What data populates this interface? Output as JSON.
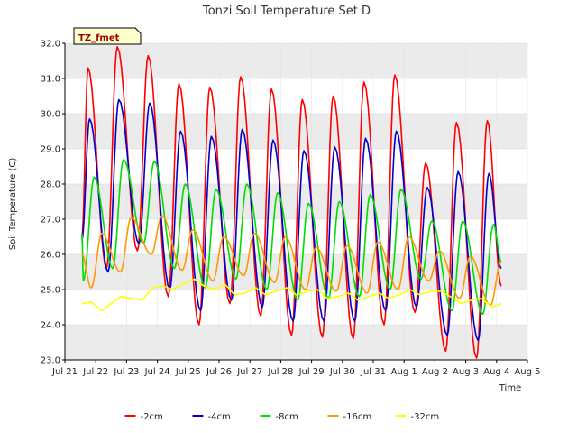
{
  "chart_data": {
    "type": "line",
    "title": "Tonzi Soil Temperature Set D",
    "xlabel": "Time",
    "ylabel": "Soil Temperature (C)",
    "tag": "TZ_fmet",
    "ylim": [
      23.0,
      32.0
    ],
    "yticks": [
      "23.0",
      "24.0",
      "25.0",
      "26.0",
      "27.0",
      "28.0",
      "29.0",
      "30.0",
      "31.0",
      "32.0"
    ],
    "xlim": [
      0,
      15
    ],
    "xticks": [
      "Jul 21",
      "Jul 22",
      "Jul 23",
      "Jul 24",
      "Jul 25",
      "Jul 26",
      "Jul 27",
      "Jul 28",
      "Jul 29",
      "Jul 30",
      "Jul 31",
      "Aug 1",
      "Aug 2",
      "Aug 3",
      "Aug 4",
      "Aug 5"
    ],
    "legend_position": "bottom",
    "background_bands": true,
    "series": [
      {
        "name": "-2cm",
        "color": "#ff0000",
        "peak_day_offsets": [
          0.75,
          1.7,
          2.7,
          3.7,
          4.7,
          5.7,
          6.7,
          7.7,
          8.7,
          9.7,
          10.7,
          11.7,
          12.7,
          13.7
        ],
        "maxima": [
          31.3,
          31.9,
          31.65,
          30.85,
          30.75,
          31.05,
          30.7,
          30.4,
          30.5,
          30.9,
          31.1,
          28.6,
          29.75,
          29.8
        ],
        "minima": [
          26.5,
          25.0,
          25.6,
          26.1,
          24.8,
          24.0,
          24.6,
          24.25,
          23.7,
          23.65,
          23.6,
          24.0,
          24.35,
          23.25,
          23.05,
          25.1
        ],
        "start_day": 0.55,
        "end_day": 14.15
      },
      {
        "name": "-4cm",
        "color": "#0000cc",
        "peak_day_offsets": [
          0.8,
          1.75,
          2.75,
          3.75,
          4.75,
          5.75,
          6.75,
          7.75,
          8.75,
          9.75,
          10.75,
          11.75,
          12.75,
          13.75
        ],
        "maxima": [
          29.85,
          30.4,
          30.3,
          29.5,
          29.35,
          29.55,
          29.25,
          28.95,
          29.05,
          29.3,
          29.5,
          27.9,
          28.35,
          28.3
        ],
        "minima": [
          26.4,
          25.1,
          25.5,
          26.3,
          25.0,
          24.4,
          24.7,
          24.5,
          24.1,
          24.1,
          24.1,
          24.4,
          24.5,
          23.7,
          23.55,
          25.6
        ],
        "start_day": 0.55,
        "end_day": 14.15
      },
      {
        "name": "-8cm",
        "color": "#00dd00",
        "peak_day_offsets": [
          0.95,
          1.9,
          2.9,
          3.9,
          4.9,
          5.9,
          6.9,
          7.9,
          8.9,
          9.9,
          10.9,
          11.9,
          12.9,
          13.9
        ],
        "maxima": [
          28.2,
          28.7,
          28.65,
          28.0,
          27.85,
          28.0,
          27.75,
          27.45,
          27.5,
          27.7,
          27.85,
          26.95,
          26.95,
          26.85
        ],
        "minima": [
          26.6,
          25.25,
          25.6,
          26.3,
          25.6,
          25.05,
          25.3,
          25.0,
          24.7,
          24.75,
          24.8,
          25.0,
          25.3,
          24.4,
          24.3,
          25.8
        ],
        "start_day": 0.55,
        "end_day": 14.15
      },
      {
        "name": "-16cm",
        "color": "#ff9900",
        "peak_day_offsets": [
          1.2,
          2.15,
          3.15,
          4.15,
          5.15,
          6.15,
          7.15,
          8.15,
          9.15,
          10.15,
          11.15,
          12.15,
          13.15,
          14.15
        ],
        "maxima": [
          26.6,
          27.05,
          27.1,
          26.7,
          26.5,
          26.6,
          26.5,
          26.2,
          26.25,
          26.35,
          26.5,
          26.1,
          25.95,
          25.8
        ],
        "minima": [
          26.0,
          25.05,
          25.5,
          26.0,
          25.55,
          25.25,
          25.4,
          25.2,
          25.0,
          24.95,
          24.9,
          25.0,
          25.25,
          24.75,
          24.55,
          25.8
        ],
        "start_day": 0.55,
        "end_day": 14.15
      },
      {
        "name": "-32cm",
        "color": "#ffff00",
        "points": [
          [
            0.55,
            24.6
          ],
          [
            0.85,
            24.65
          ],
          [
            1.2,
            24.4
          ],
          [
            1.5,
            24.6
          ],
          [
            1.8,
            24.8
          ],
          [
            2.2,
            24.75
          ],
          [
            2.5,
            24.7
          ],
          [
            2.85,
            25.05
          ],
          [
            3.2,
            25.1
          ],
          [
            3.5,
            25.0
          ],
          [
            3.8,
            25.15
          ],
          [
            4.2,
            25.3
          ],
          [
            4.5,
            25.1
          ],
          [
            4.85,
            25.0
          ],
          [
            5.2,
            25.15
          ],
          [
            5.5,
            24.85
          ],
          [
            5.85,
            24.9
          ],
          [
            6.2,
            25.05
          ],
          [
            6.5,
            24.85
          ],
          [
            6.85,
            24.95
          ],
          [
            7.2,
            25.05
          ],
          [
            7.5,
            24.85
          ],
          [
            7.85,
            24.95
          ],
          [
            8.2,
            25.0
          ],
          [
            8.5,
            24.75
          ],
          [
            8.85,
            24.8
          ],
          [
            9.2,
            24.9
          ],
          [
            9.5,
            24.7
          ],
          [
            9.85,
            24.8
          ],
          [
            10.2,
            24.9
          ],
          [
            10.5,
            24.75
          ],
          [
            10.85,
            24.85
          ],
          [
            11.2,
            25.0
          ],
          [
            11.5,
            24.85
          ],
          [
            11.85,
            24.95
          ],
          [
            12.2,
            24.95
          ],
          [
            12.5,
            24.8
          ],
          [
            12.85,
            24.6
          ],
          [
            13.2,
            24.7
          ],
          [
            13.5,
            24.75
          ],
          [
            13.85,
            24.5
          ],
          [
            14.15,
            24.6
          ]
        ]
      }
    ]
  }
}
